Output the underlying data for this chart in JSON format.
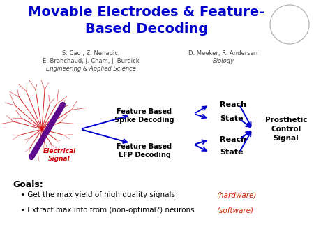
{
  "title_line1": "Movable Electrodes & Feature-",
  "title_line2": "Based Decoding",
  "title_color": "#0000CC",
  "title_fontsize": 14,
  "author_left_line1": "S. Cao , Z. Nenadic,",
  "author_left_line2": "E. Branchaud, J. Cham, J. Burdick",
  "author_left_line3": "Engineering & Applied Science",
  "author_right_line1": "D. Meeker, R. Andersen",
  "author_right_line2": "Biology",
  "author_color": "#444444",
  "diagram_arrow_color": "#0000CC",
  "electrical_signal_color": "#CC0000",
  "neuron_color": "#CC0000",
  "electrode_color": "#550088",
  "hardware_color": "#CC2200",
  "software_color": "#CC2200",
  "right_labels": [
    "Reach",
    "State",
    "Reach",
    "State"
  ],
  "final_label": "Prosthetic\nControl\nSignal",
  "bg_color": "#ffffff"
}
